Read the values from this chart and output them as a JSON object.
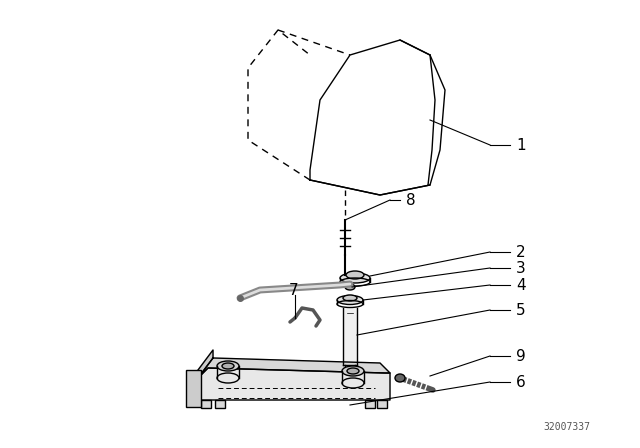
{
  "background_color": "#ffffff",
  "line_color": "#000000",
  "part_color": "#333333",
  "watermark": "32007337",
  "figsize": [
    6.4,
    4.48
  ],
  "dpi": 100
}
